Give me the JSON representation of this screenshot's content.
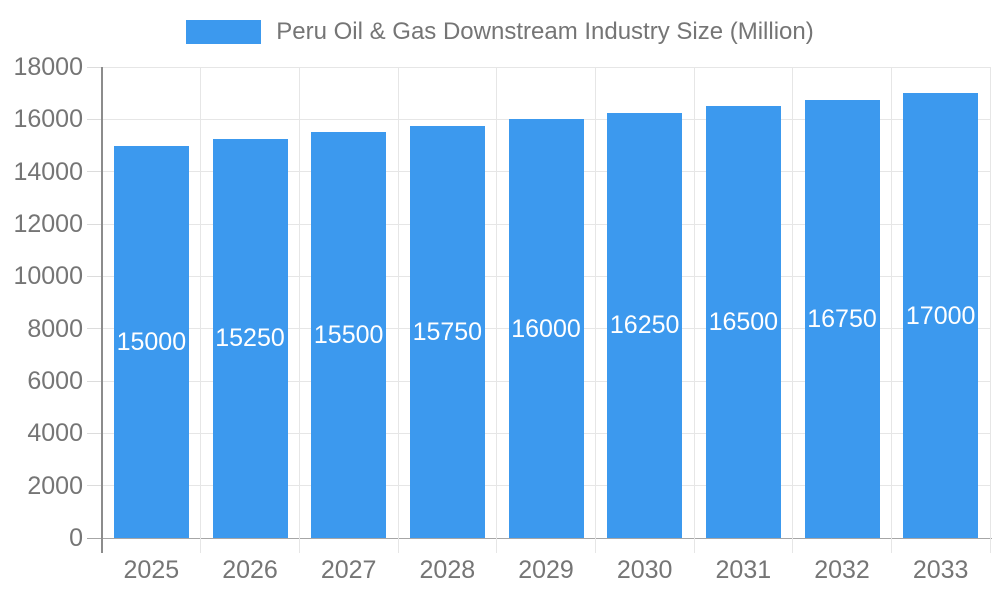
{
  "chart_data": {
    "type": "bar",
    "title": "Peru Oil & Gas Downstream Industry Size (Million)",
    "legend": {
      "position": "top",
      "entries": [
        {
          "label": "Peru Oil & Gas Downstream Industry Size (Million)",
          "color": "#3C99EE"
        }
      ]
    },
    "categories": [
      "2025",
      "2026",
      "2027",
      "2028",
      "2029",
      "2030",
      "2031",
      "2032",
      "2033"
    ],
    "values": [
      15000,
      15250,
      15500,
      15750,
      16000,
      16250,
      16500,
      16750,
      17000
    ],
    "bar_value_labels": [
      "15000",
      "15250",
      "15500",
      "15750",
      "16000",
      "16250",
      "16500",
      "16750",
      "17000"
    ],
    "xlabel": "",
    "ylabel": "",
    "ylim": [
      0,
      18000
    ],
    "yticks": [
      0,
      2000,
      4000,
      6000,
      8000,
      10000,
      12000,
      14000,
      16000,
      18000
    ],
    "grid": true,
    "colors": {
      "bar": "#3C99EE",
      "gridline": "#E6E6E6",
      "y_axis_line": "#8C8C8C",
      "baseline": "#A6A6A6",
      "tick_label": "#757575",
      "bar_label": "#FFFFFF",
      "background": "#FFFFFF"
    }
  }
}
